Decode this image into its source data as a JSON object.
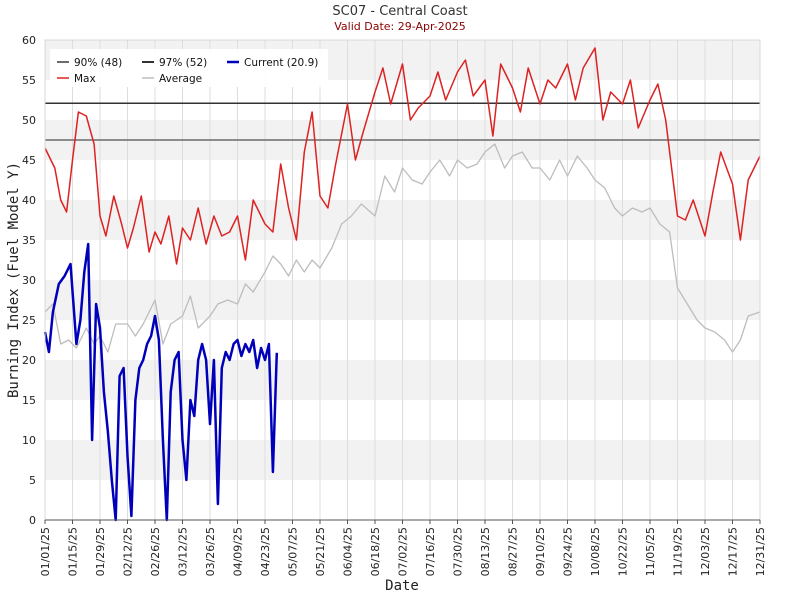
{
  "chart_data": {
    "type": "line",
    "title": "SC07 - Central Coast",
    "subtitle": "Valid Date: 29-Apr-2025",
    "xlabel": "Date",
    "ylabel": "Burning Index (Fuel Model Y)",
    "ylim": [
      0,
      60
    ],
    "y_ticks": [
      0,
      5,
      10,
      15,
      20,
      25,
      30,
      35,
      40,
      45,
      50,
      55,
      60
    ],
    "x_ticks": [
      "01/01/25",
      "01/15/25",
      "01/29/25",
      "02/12/25",
      "02/26/25",
      "03/12/25",
      "03/26/25",
      "04/09/25",
      "04/23/25",
      "05/07/25",
      "05/21/25",
      "06/04/25",
      "06/18/25",
      "07/02/25",
      "07/16/25",
      "07/30/25",
      "08/13/25",
      "08/27/25",
      "09/10/25",
      "09/24/25",
      "10/08/25",
      "10/22/25",
      "11/05/25",
      "11/19/25",
      "12/03/25",
      "12/17/25",
      "12/31/25"
    ],
    "legend_position": "top-left",
    "grid": "alternating horizontal bands",
    "thresholds": [
      {
        "name": "90% (48)",
        "value": 47.5,
        "color": "#6b6b6b"
      },
      {
        "name": "97% (52)",
        "value": 52.1,
        "color": "#333333"
      }
    ],
    "series": [
      {
        "name": "Max",
        "color": "#dd2222",
        "x": [
          "01/01/25",
          "01/06/25",
          "01/09/25",
          "01/12/25",
          "01/15/25",
          "01/18/25",
          "01/22/25",
          "01/26/25",
          "01/29/25",
          "02/01/25",
          "02/05/25",
          "02/09/25",
          "02/12/25",
          "02/15/25",
          "02/19/25",
          "02/23/25",
          "02/26/25",
          "03/01/25",
          "03/05/25",
          "03/09/25",
          "03/12/25",
          "03/16/25",
          "03/20/25",
          "03/24/25",
          "03/28/25",
          "04/01/25",
          "04/05/25",
          "04/09/25",
          "04/13/25",
          "04/17/25",
          "04/23/25",
          "04/27/25",
          "05/01/25",
          "05/05/25",
          "05/09/25",
          "05/13/25",
          "05/17/25",
          "05/21/25",
          "05/25/25",
          "05/29/25",
          "06/04/25",
          "06/08/25",
          "06/12/25",
          "06/18/25",
          "06/22/25",
          "06/26/25",
          "07/02/25",
          "07/06/25",
          "07/10/25",
          "07/16/25",
          "07/20/25",
          "07/24/25",
          "07/30/25",
          "08/03/25",
          "08/07/25",
          "08/13/25",
          "08/17/25",
          "08/21/25",
          "08/27/25",
          "08/31/25",
          "09/04/25",
          "09/10/25",
          "09/14/25",
          "09/18/25",
          "09/24/25",
          "09/28/25",
          "10/02/25",
          "10/08/25",
          "10/12/25",
          "10/16/25",
          "10/22/25",
          "10/26/25",
          "10/30/25",
          "11/05/25",
          "11/09/25",
          "11/13/25",
          "11/19/25",
          "11/23/25",
          "11/27/25",
          "12/03/25",
          "12/07/25",
          "12/11/25",
          "12/17/25",
          "12/21/25",
          "12/25/25",
          "12/31/25"
        ],
        "values": [
          46.5,
          44.0,
          40.0,
          38.5,
          45.0,
          51.0,
          50.5,
          47.0,
          38.0,
          35.5,
          40.5,
          37.0,
          34.0,
          36.5,
          40.5,
          33.5,
          36.0,
          34.5,
          38.0,
          32.0,
          36.5,
          35.0,
          39.0,
          34.5,
          38.0,
          35.5,
          36.0,
          38.0,
          32.5,
          40.0,
          37.0,
          36.0,
          44.5,
          39.0,
          35.0,
          46.0,
          51.0,
          40.5,
          39.0,
          44.5,
          52.0,
          45.0,
          48.5,
          53.5,
          56.5,
          52.0,
          57.0,
          50.0,
          51.5,
          53.0,
          56.0,
          52.5,
          56.0,
          57.5,
          53.0,
          55.0,
          48.0,
          57.0,
          54.0,
          51.0,
          56.5,
          52.0,
          55.0,
          54.0,
          57.0,
          52.5,
          56.5,
          59.0,
          50.0,
          53.5,
          52.0,
          55.0,
          49.0,
          52.5,
          54.5,
          50.0,
          38.0,
          37.5,
          40.0,
          35.5,
          41.0,
          46.0,
          42.0,
          35.0,
          42.5,
          45.5
        ]
      },
      {
        "name": "Average",
        "color": "#bdbdbd",
        "x": [
          "01/01/25",
          "01/05/25",
          "01/09/25",
          "01/13/25",
          "01/17/25",
          "01/22/25",
          "01/26/25",
          "01/29/25",
          "02/02/25",
          "02/06/25",
          "02/12/25",
          "02/16/25",
          "02/20/25",
          "02/26/25",
          "03/02/25",
          "03/06/25",
          "03/12/25",
          "03/16/25",
          "03/20/25",
          "03/26/25",
          "03/30/25",
          "04/04/25",
          "04/09/25",
          "04/13/25",
          "04/17/25",
          "04/23/25",
          "04/27/25",
          "05/01/25",
          "05/05/25",
          "05/09/25",
          "05/13/25",
          "05/17/25",
          "05/21/25",
          "05/27/25",
          "06/01/25",
          "06/06/25",
          "06/11/25",
          "06/18/25",
          "06/23/25",
          "06/28/25",
          "07/02/25",
          "07/07/25",
          "07/12/25",
          "07/16/25",
          "07/21/25",
          "07/26/25",
          "07/30/25",
          "08/04/25",
          "08/09/25",
          "08/13/25",
          "08/18/25",
          "08/23/25",
          "08/27/25",
          "09/01/25",
          "09/06/25",
          "09/10/25",
          "09/15/25",
          "09/20/25",
          "09/24/25",
          "09/29/25",
          "10/04/25",
          "10/08/25",
          "10/13/25",
          "10/18/25",
          "10/22/25",
          "10/27/25",
          "11/01/25",
          "11/05/25",
          "11/10/25",
          "11/15/25",
          "11/19/25",
          "11/24/25",
          "11/29/25",
          "12/03/25",
          "12/08/25",
          "12/13/25",
          "12/17/25",
          "12/21/25",
          "12/25/25",
          "12/31/25"
        ],
        "values": [
          26.0,
          27.0,
          22.0,
          22.5,
          21.5,
          24.0,
          22.0,
          23.0,
          21.0,
          24.5,
          24.5,
          23.0,
          24.5,
          27.5,
          22.0,
          24.5,
          25.5,
          28.0,
          24.0,
          25.5,
          27.0,
          27.5,
          27.0,
          29.5,
          28.5,
          31.0,
          33.0,
          32.0,
          30.5,
          32.5,
          31.0,
          32.5,
          31.5,
          34.0,
          37.0,
          38.0,
          39.5,
          38.0,
          43.0,
          41.0,
          44.0,
          42.5,
          42.0,
          43.5,
          45.0,
          43.0,
          45.0,
          44.0,
          44.5,
          46.0,
          47.0,
          44.0,
          45.5,
          46.0,
          44.0,
          44.0,
          42.5,
          45.0,
          43.0,
          45.5,
          44.0,
          42.5,
          41.5,
          39.0,
          38.0,
          39.0,
          38.5,
          39.0,
          37.0,
          36.0,
          29.0,
          27.0,
          25.0,
          24.0,
          23.5,
          22.5,
          21.0,
          22.5,
          25.5,
          26.0
        ]
      },
      {
        "name": "Current (20.9)",
        "color": "#0000bb",
        "x": [
          "01/01/25",
          "01/03/25",
          "01/05/25",
          "01/08/25",
          "01/11/25",
          "01/14/25",
          "01/17/25",
          "01/19/25",
          "01/21/25",
          "01/23/25",
          "01/25/25",
          "01/27/25",
          "01/29/25",
          "01/31/25",
          "02/02/25",
          "02/04/25",
          "02/06/25",
          "02/08/25",
          "02/10/25",
          "02/12/25",
          "02/14/25",
          "02/16/25",
          "02/18/25",
          "02/20/25",
          "02/22/25",
          "02/24/25",
          "02/26/25",
          "02/28/25",
          "03/02/25",
          "03/04/25",
          "03/06/25",
          "03/08/25",
          "03/10/25",
          "03/12/25",
          "03/14/25",
          "03/16/25",
          "03/18/25",
          "03/20/25",
          "03/22/25",
          "03/24/25",
          "03/26/25",
          "03/28/25",
          "03/30/25",
          "04/01/25",
          "04/03/25",
          "04/05/25",
          "04/07/25",
          "04/09/25",
          "04/11/25",
          "04/13/25",
          "04/15/25",
          "04/17/25",
          "04/19/25",
          "04/21/25",
          "04/23/25",
          "04/25/25",
          "04/27/25",
          "04/29/25"
        ],
        "values": [
          23.5,
          21.0,
          26.0,
          29.5,
          30.5,
          32.0,
          22.0,
          25.0,
          31.0,
          34.5,
          10.0,
          27.0,
          24.0,
          16.0,
          11.0,
          5.0,
          0.0,
          18.0,
          19.0,
          8.0,
          0.5,
          15.0,
          19.0,
          20.0,
          22.0,
          23.0,
          25.5,
          22.5,
          10.0,
          0.0,
          16.0,
          20.0,
          21.0,
          10.0,
          5.0,
          15.0,
          13.0,
          20.0,
          22.0,
          20.0,
          12.0,
          20.0,
          2.0,
          19.0,
          21.0,
          20.0,
          22.0,
          22.5,
          20.5,
          22.0,
          21.0,
          22.5,
          19.0,
          21.5,
          20.0,
          22.0,
          6.0,
          20.9
        ]
      }
    ]
  }
}
